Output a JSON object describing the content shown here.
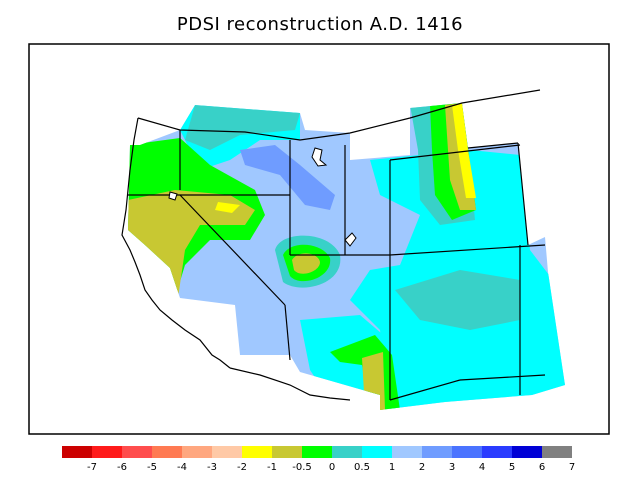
{
  "title": "PDSI reconstruction A.D. 1416",
  "legend": {
    "colors": [
      "#cc0000",
      "#ff1a1a",
      "#ff4d4d",
      "#ff7a52",
      "#ffa77f",
      "#ffc9a6",
      "#ffff00",
      "#c8c832",
      "#00ff00",
      "#38d1c8",
      "#00ffff",
      "#a0c8ff",
      "#6f9cff",
      "#4a73ff",
      "#2a3cff",
      "#0000d6",
      "#808080"
    ],
    "labels": [
      "-7",
      "-6",
      "-5",
      "-4",
      "-3",
      "-2",
      "-1",
      "-0.5",
      "0",
      "0.5",
      "1",
      "2",
      "3",
      "4",
      "5",
      "6",
      "7"
    ]
  }
}
